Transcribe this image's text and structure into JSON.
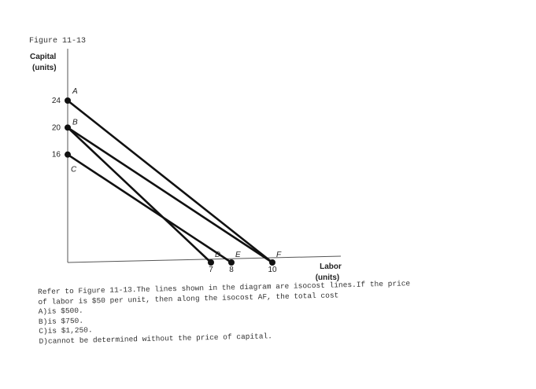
{
  "figure_label": "Figure 11-13",
  "chart_data": {
    "type": "line",
    "ylabel_line1": "Capital",
    "ylabel_line2": "(units)",
    "xlabel_line1": "Labor",
    "xlabel_line2": "(units)",
    "xlim": [
      0,
      13
    ],
    "ylim": [
      0,
      28
    ],
    "y_ticks": [
      {
        "value": 24,
        "label": "24"
      },
      {
        "value": 20,
        "label": "20"
      },
      {
        "value": 16,
        "label": "16"
      }
    ],
    "x_ticks": [
      {
        "value": 7,
        "label": "7"
      },
      {
        "value": 8,
        "label": "8"
      },
      {
        "value": 10,
        "label": "10"
      }
    ],
    "points": [
      {
        "name": "A",
        "x": 0,
        "y": 24
      },
      {
        "name": "B",
        "x": 0,
        "y": 20
      },
      {
        "name": "C",
        "x": 0,
        "y": 16
      },
      {
        "name": "D",
        "x": 7,
        "y": 0
      },
      {
        "name": "E",
        "x": 8,
        "y": 0
      },
      {
        "name": "F",
        "x": 10,
        "y": 0
      }
    ],
    "lines": [
      {
        "from": "A",
        "to": "F"
      },
      {
        "from": "B",
        "to": "F"
      },
      {
        "from": "B",
        "to": "D"
      },
      {
        "from": "C",
        "to": "E"
      }
    ]
  },
  "question": {
    "line1": "Refer to Figure 11-13.The lines shown in the diagram are isocost lines.If the price",
    "line2": "of labor is $50 per unit, then along the isocost AF, the total cost",
    "option_a": "A)is $500.",
    "option_b": "B)is $750.",
    "option_c": "C)is $1,250.",
    "option_d": "D)cannot be determined without the price of capital."
  }
}
